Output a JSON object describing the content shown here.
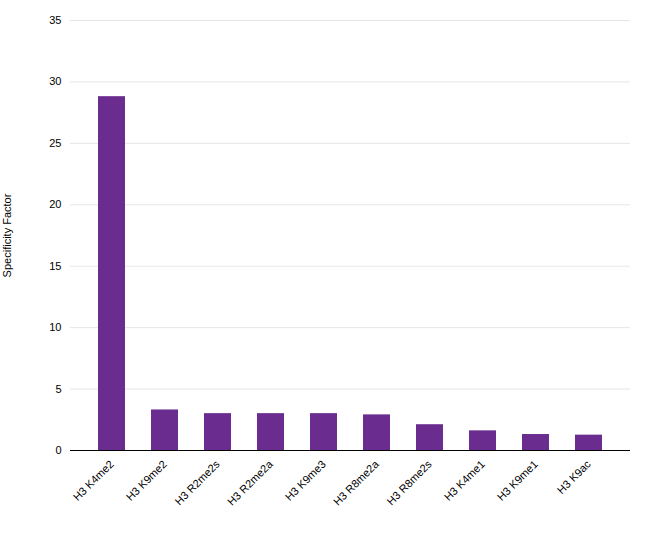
{
  "chart_data": {
    "type": "bar",
    "categories": [
      "H3 K4me2",
      "H3 K9me2",
      "H3 R2me2s",
      "H3 R2me2a",
      "H3 K9me3",
      "H3 R8me2a",
      "H3 R8me2s",
      "H3 K4me1",
      "H3 K9me1",
      "H3 K9ac"
    ],
    "values": [
      28.8,
      3.3,
      3.0,
      3.0,
      3.0,
      2.9,
      2.1,
      1.6,
      1.3,
      1.25
    ],
    "color": "#6a2d8f",
    "ylabel": "Specificity Factor",
    "ylim": [
      0,
      35
    ],
    "yticks": [
      0,
      5,
      10,
      15,
      20,
      25,
      30,
      35
    ],
    "grid": true
  }
}
